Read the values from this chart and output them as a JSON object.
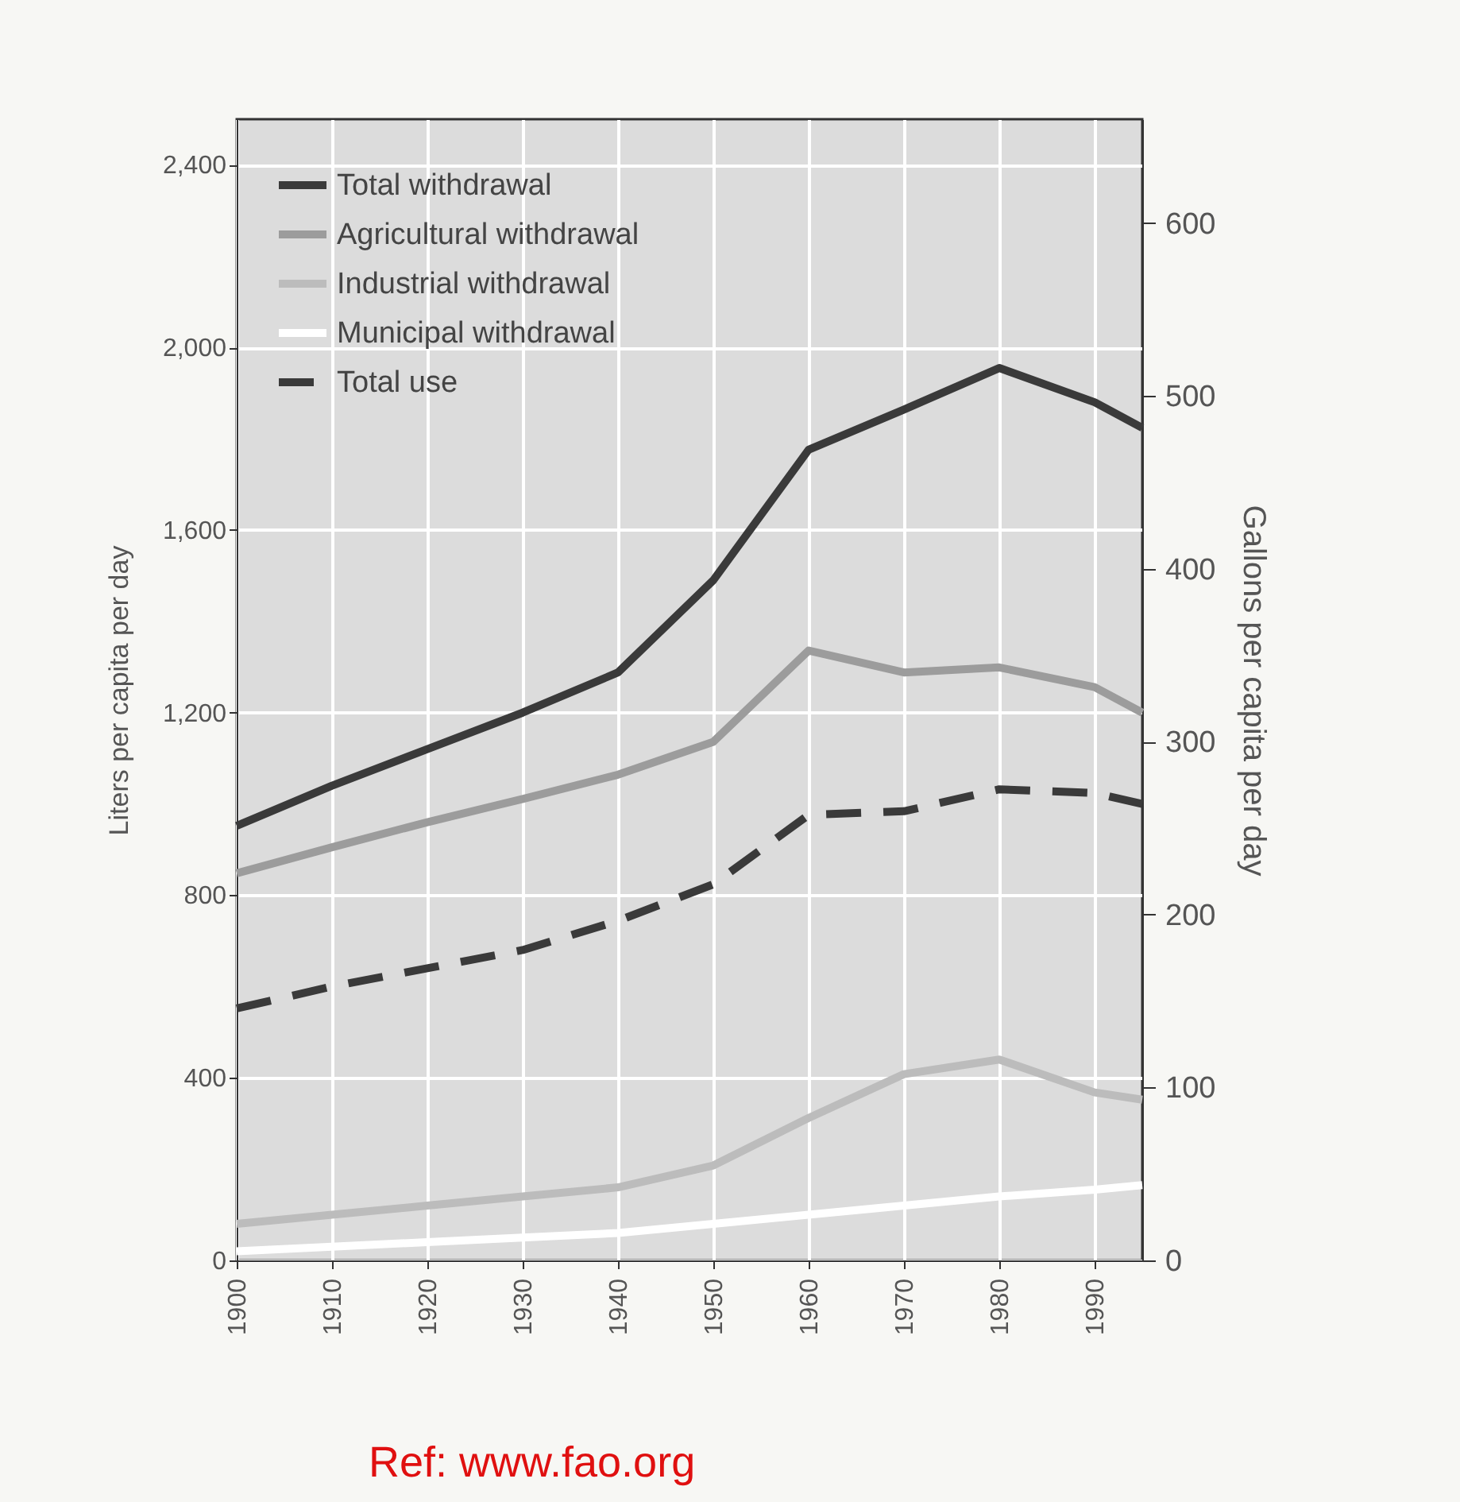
{
  "chart_data": {
    "type": "line",
    "ylabel": "Liters per capita per day",
    "y2label": "Gallons per capita per day",
    "x": [
      1900,
      1910,
      1920,
      1930,
      1940,
      1950,
      1960,
      1970,
      1980,
      1990,
      1995
    ],
    "series": [
      {
        "name": "Total withdrawal",
        "color": "#3a3a3a",
        "line_style": "solid",
        "values": [
          952,
          1040,
          1120,
          1200,
          1288,
          1490,
          1776,
          1864,
          1955,
          1880,
          1824
        ]
      },
      {
        "name": "Agricultural withdrawal",
        "color": "#9c9c9c",
        "line_style": "solid",
        "values": [
          848,
          905,
          960,
          1011,
          1064,
          1136,
          1336,
          1288,
          1299,
          1256,
          1200
        ]
      },
      {
        "name": "Industrial withdrawal",
        "color": "#bcbcbc",
        "line_style": "solid",
        "values": [
          80,
          100,
          120,
          140,
          160,
          208,
          312,
          408,
          440,
          368,
          352
        ]
      },
      {
        "name": "Municipal withdrawal",
        "color": "#ffffff",
        "line_style": "solid",
        "values": [
          20,
          30,
          40,
          50,
          60,
          80,
          100,
          120,
          140,
          155,
          165
        ]
      },
      {
        "name": "Total use",
        "color": "#3a3a3a",
        "line_style": "dashed",
        "values": [
          552,
          600,
          640,
          680,
          744,
          824,
          976,
          984,
          1032,
          1024,
          1000
        ]
      }
    ],
    "xlim": [
      1900,
      1995
    ],
    "xticks": [
      1900,
      1910,
      1920,
      1930,
      1940,
      1950,
      1960,
      1970,
      1980,
      1990
    ],
    "ylim": [
      0,
      2500
    ],
    "yticks": [
      0,
      400,
      800,
      {
        "value": 1200,
        "label": "1,200"
      },
      {
        "value": 1600,
        "label": "1,600"
      },
      {
        "value": 2000,
        "label": "2,000"
      },
      {
        "value": 2400,
        "label": "2,400"
      }
    ],
    "y2lim": [
      0,
      660
    ],
    "y2ticks": [
      0,
      100,
      200,
      300,
      400,
      500,
      600
    ],
    "grid": true,
    "legend": "top left",
    "annotations": [
      "Ref: www.fao.org"
    ]
  }
}
